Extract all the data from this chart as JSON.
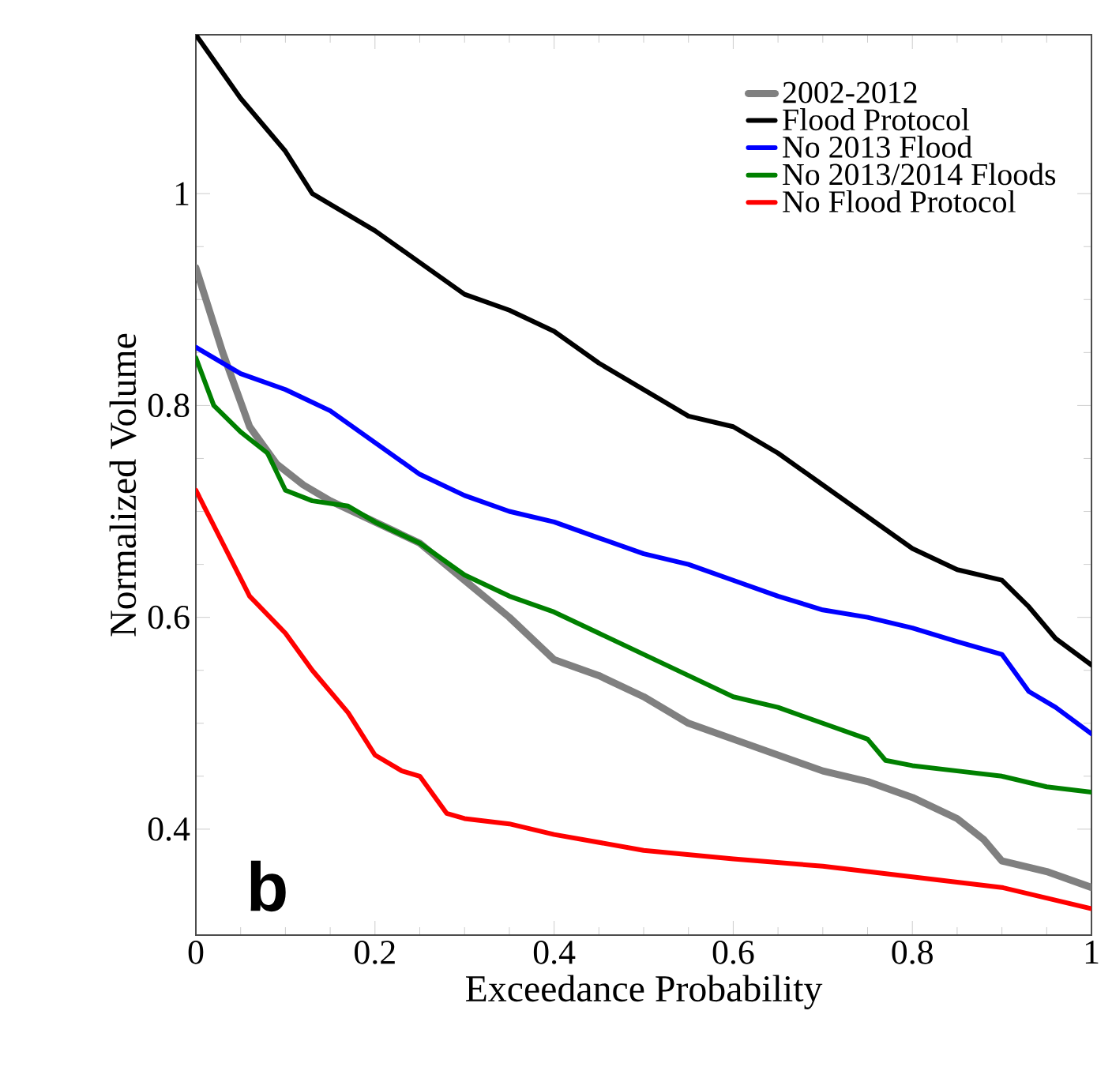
{
  "chart_data": {
    "type": "line",
    "xlabel": "Exceedance Probability",
    "ylabel": "Normalized Volume",
    "xlim": [
      0,
      1
    ],
    "ylim": [
      0.3,
      1.15
    ],
    "xticks": [
      0,
      0.2,
      0.4,
      0.6,
      0.8,
      1
    ],
    "yticks": [
      0.4,
      0.6,
      0.8,
      1
    ],
    "legend": "top right",
    "grid": false,
    "marker": "none",
    "line_style": "solid",
    "annotations": [
      "b"
    ],
    "series": [
      {
        "name": "2002-2012",
        "color": "#808080",
        "x": [
          0,
          0.03,
          0.06,
          0.09,
          0.12,
          0.15,
          0.2,
          0.25,
          0.3,
          0.35,
          0.4,
          0.45,
          0.5,
          0.55,
          0.6,
          0.65,
          0.7,
          0.75,
          0.8,
          0.85,
          0.88,
          0.9,
          0.95,
          1.0
        ],
        "values": [
          0.93,
          0.85,
          0.78,
          0.745,
          0.725,
          0.71,
          0.69,
          0.67,
          0.635,
          0.6,
          0.56,
          0.545,
          0.525,
          0.5,
          0.485,
          0.47,
          0.455,
          0.445,
          0.43,
          0.41,
          0.39,
          0.37,
          0.36,
          0.345
        ]
      },
      {
        "name": "Flood Protocol",
        "color": "#000000",
        "x": [
          0,
          0.05,
          0.1,
          0.13,
          0.2,
          0.25,
          0.3,
          0.35,
          0.4,
          0.45,
          0.5,
          0.55,
          0.6,
          0.65,
          0.7,
          0.75,
          0.8,
          0.85,
          0.9,
          0.93,
          0.96,
          1.0
        ],
        "values": [
          1.15,
          1.09,
          1.04,
          1.0,
          0.965,
          0.935,
          0.905,
          0.89,
          0.87,
          0.84,
          0.815,
          0.79,
          0.78,
          0.755,
          0.725,
          0.695,
          0.665,
          0.645,
          0.635,
          0.61,
          0.58,
          0.555
        ]
      },
      {
        "name": "No 2013 Flood",
        "color": "#0000ff",
        "x": [
          0,
          0.05,
          0.1,
          0.15,
          0.2,
          0.25,
          0.3,
          0.35,
          0.4,
          0.45,
          0.5,
          0.55,
          0.6,
          0.65,
          0.7,
          0.75,
          0.8,
          0.85,
          0.9,
          0.93,
          0.96,
          1.0
        ],
        "values": [
          0.855,
          0.83,
          0.815,
          0.795,
          0.765,
          0.735,
          0.715,
          0.7,
          0.69,
          0.675,
          0.66,
          0.65,
          0.635,
          0.62,
          0.607,
          0.6,
          0.59,
          0.577,
          0.565,
          0.53,
          0.515,
          0.49
        ]
      },
      {
        "name": "No 2013/2014 Floods",
        "color": "#008000",
        "x": [
          0,
          0.02,
          0.05,
          0.08,
          0.1,
          0.13,
          0.17,
          0.2,
          0.25,
          0.3,
          0.35,
          0.4,
          0.45,
          0.5,
          0.55,
          0.6,
          0.65,
          0.7,
          0.75,
          0.77,
          0.8,
          0.85,
          0.9,
          0.95,
          1.0
        ],
        "values": [
          0.845,
          0.8,
          0.775,
          0.755,
          0.72,
          0.71,
          0.705,
          0.69,
          0.67,
          0.64,
          0.62,
          0.605,
          0.585,
          0.565,
          0.545,
          0.525,
          0.515,
          0.5,
          0.485,
          0.465,
          0.46,
          0.455,
          0.45,
          0.44,
          0.435
        ]
      },
      {
        "name": "No Flood Protocol",
        "color": "#ff0000",
        "x": [
          0,
          0.03,
          0.06,
          0.1,
          0.13,
          0.17,
          0.2,
          0.23,
          0.25,
          0.28,
          0.3,
          0.35,
          0.4,
          0.5,
          0.6,
          0.7,
          0.8,
          0.9,
          0.95,
          1.0
        ],
        "values": [
          0.72,
          0.67,
          0.62,
          0.585,
          0.55,
          0.51,
          0.47,
          0.455,
          0.45,
          0.415,
          0.41,
          0.405,
          0.395,
          0.38,
          0.372,
          0.365,
          0.355,
          0.345,
          0.335,
          0.325
        ]
      }
    ]
  }
}
